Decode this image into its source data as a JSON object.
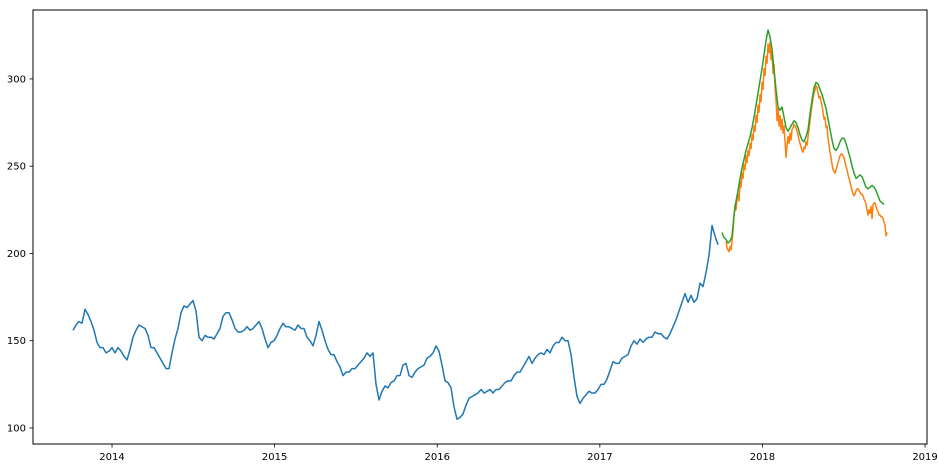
{
  "figure": {
    "title": "",
    "background_color": "#ffffff"
  },
  "chart_data": {
    "type": "line",
    "title": "",
    "xlabel": "",
    "ylabel": "",
    "grid": false,
    "legend": null,
    "xlim": [
      2013.514,
      2019.012
    ],
    "ylim": [
      90.8,
      339.5
    ],
    "x_ticks": [
      2014,
      2015,
      2016,
      2017,
      2018,
      2019
    ],
    "x_tick_labels": [
      "2014",
      "2015",
      "2016",
      "2017",
      "2018",
      "2019"
    ],
    "y_ticks": [
      100,
      150,
      200,
      250,
      300
    ],
    "y_tick_labels": [
      "100",
      "150",
      "200",
      "250",
      "300"
    ],
    "line_width": 1.5,
    "series": [
      {
        "name": "blue",
        "color": "#1f77b4",
        "x_start": 2013.7601,
        "x_step": 0.01845,
        "values": [
          156,
          159,
          161,
          160,
          168,
          165,
          161,
          156,
          149,
          146,
          146,
          143,
          144,
          146,
          143,
          146,
          144,
          141,
          139,
          145,
          152,
          156,
          159,
          158,
          157,
          153,
          146,
          146,
          143,
          140,
          137,
          134,
          134,
          143,
          151,
          157,
          166,
          170,
          169,
          171,
          173,
          167,
          152,
          150,
          153,
          152,
          152,
          151,
          154,
          157,
          164,
          166,
          166,
          162,
          157,
          155,
          155,
          156,
          158,
          156,
          157,
          159,
          161,
          157,
          151,
          146,
          149,
          150,
          153,
          157,
          160,
          158,
          158,
          157,
          156,
          159,
          157,
          157,
          152,
          150,
          147,
          153,
          161,
          156,
          150,
          145,
          142,
          142,
          138,
          135,
          130,
          132,
          132,
          134,
          134,
          136,
          138,
          140,
          143,
          141,
          143,
          125,
          116,
          121,
          124,
          123,
          126,
          127,
          130,
          130,
          136,
          137,
          130,
          129,
          132,
          134,
          135,
          136,
          140,
          141,
          143,
          147,
          144,
          136,
          127,
          126,
          123,
          112,
          105,
          106,
          108,
          113,
          117,
          118,
          119,
          120,
          122,
          120,
          121,
          122,
          120,
          122,
          122,
          124,
          126,
          127,
          127,
          130,
          132,
          132,
          135,
          138,
          141,
          137,
          140,
          142,
          143,
          142,
          145,
          143,
          147,
          149,
          149,
          152,
          150,
          150,
          142,
          129,
          118,
          114,
          117,
          119,
          121,
          120,
          120,
          122,
          125,
          125,
          128,
          133,
          138,
          137,
          137,
          140,
          141,
          142,
          147,
          150,
          148,
          151,
          149,
          151,
          152,
          152,
          155,
          154,
          154,
          152,
          151,
          154,
          158,
          162,
          167,
          172,
          177,
          172,
          176,
          172,
          174,
          183,
          181,
          189,
          199,
          216,
          210,
          205
        ]
      },
      {
        "name": "orange",
        "color": "#ff7f0e",
        "x_start": 2017.7761,
        "x_step": 0.00615,
        "values": [
          207,
          203,
          202,
          201,
          204,
          202,
          207,
          213,
          222,
          228,
          225,
          231,
          234,
          230,
          241,
          238,
          246,
          243,
          251,
          248,
          256,
          252,
          259,
          256,
          263,
          260,
          268,
          265,
          273,
          270,
          279,
          275,
          285,
          281,
          291,
          287,
          298,
          294,
          306,
          302,
          313,
          309,
          320,
          315,
          321,
          311,
          316,
          303,
          308,
          295,
          288,
          276,
          283,
          273,
          279,
          271,
          277,
          269,
          273,
          264,
          255,
          262,
          267,
          263,
          269,
          265,
          271,
          272,
          274,
          273,
          272,
          270,
          268,
          265,
          263,
          261,
          259,
          258,
          261,
          260,
          264,
          262,
          267,
          271,
          276,
          281,
          285,
          289,
          292,
          294,
          296,
          295,
          292,
          289,
          290,
          287,
          285,
          281,
          277,
          278,
          272,
          273,
          266,
          262,
          258,
          255,
          251,
          248,
          247,
          246,
          248,
          250,
          252,
          254,
          256,
          257,
          257,
          256,
          255,
          252,
          250,
          248,
          245,
          243,
          241,
          238,
          236,
          234,
          233,
          234,
          236,
          237,
          237,
          236,
          235,
          234,
          234,
          233,
          231,
          230,
          228,
          225,
          222,
          225,
          223,
          227,
          220,
          228,
          229,
          229,
          227,
          225,
          224,
          222,
          222,
          221,
          221,
          220,
          218,
          216,
          210,
          212
        ]
      },
      {
        "name": "green",
        "color": "#2ca02c",
        "x_start": 2017.7515,
        "x_step": 0.0123,
        "values": [
          212,
          209,
          208,
          206,
          207,
          210,
          222,
          230,
          236,
          243,
          249,
          254,
          259,
          263,
          267,
          272,
          278,
          285,
          292,
          299,
          306,
          314,
          322,
          328,
          324,
          317,
          305,
          294,
          284,
          282,
          284,
          278,
          272,
          270,
          272,
          274,
          276,
          275,
          272,
          268,
          265,
          264,
          267,
          271,
          280,
          288,
          295,
          298,
          297,
          294,
          291,
          287,
          283,
          277,
          271,
          265,
          260,
          259,
          261,
          264,
          266,
          266,
          263,
          259,
          255,
          250,
          246,
          243,
          244,
          245,
          244,
          241,
          238,
          237,
          238,
          239,
          238,
          236,
          233,
          230,
          229,
          228
        ]
      }
    ]
  }
}
